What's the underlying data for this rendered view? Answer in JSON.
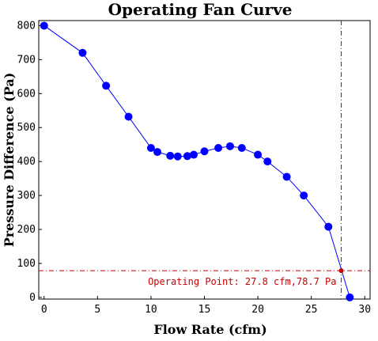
{
  "chart_data": {
    "type": "line",
    "title": "Operating Fan Curve",
    "xlabel": "Flow Rate (cfm)",
    "ylabel": "Pressure Difference (Pa)",
    "xlim": [
      -0.5,
      30.5
    ],
    "ylim": [
      -5,
      815
    ],
    "x_ticks": [
      0,
      5,
      10,
      15,
      20,
      25,
      30
    ],
    "y_ticks": [
      0,
      100,
      200,
      300,
      400,
      500,
      600,
      700,
      800
    ],
    "x_tick_labels": [
      "0",
      "5",
      "10",
      "15",
      "20",
      "25",
      "30"
    ],
    "y_tick_labels": [
      "0",
      "100",
      "200",
      "300",
      "400",
      "500",
      "600",
      "700",
      "800"
    ],
    "grid": false,
    "series": [
      {
        "x": [
          0,
          3.6,
          5.8,
          7.9,
          10.0,
          10.6,
          11.8,
          12.5,
          13.4,
          14.0,
          15.0,
          16.3,
          17.4,
          18.5,
          20.0,
          20.9,
          22.7,
          24.3,
          26.6,
          28.6
        ],
        "y": [
          800,
          720,
          623,
          532,
          440,
          428,
          417,
          415,
          416,
          420,
          430,
          440,
          445,
          440,
          420,
          400,
          355,
          300,
          208,
          0
        ]
      }
    ],
    "series_color": "#0000ff",
    "operating_point": {
      "x": 27.8,
      "y": 78.7
    },
    "operating_point_color": "#cc0000",
    "annotation": "Operating Point: 27.8 cfm,78.7 Pa"
  }
}
